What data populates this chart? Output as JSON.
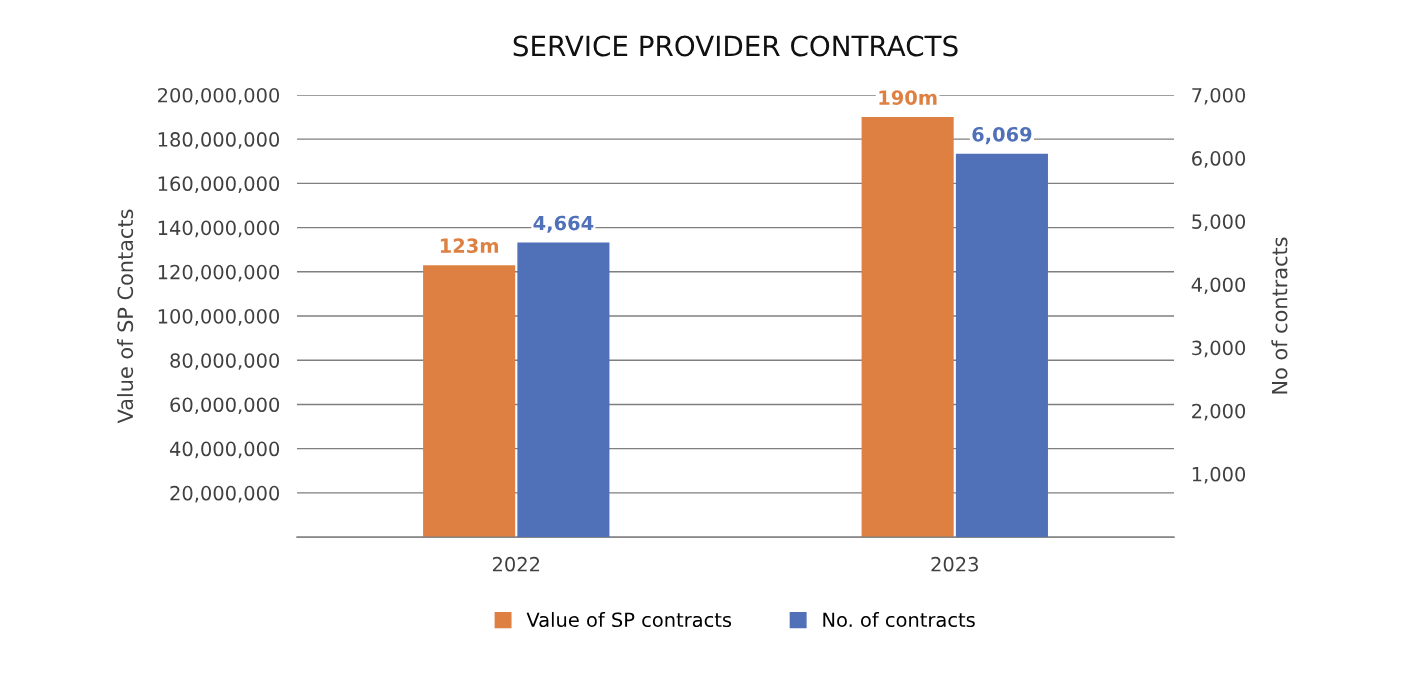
{
  "chart_data": {
    "type": "bar",
    "title": "SERVICE PROVIDER CONTRACTS",
    "ylabel": "Value of SP Contacts",
    "y2label": "No of contracts",
    "categories": [
      "2022",
      "2023"
    ],
    "series": [
      {
        "name": "Value of SP contracts",
        "color": "#dd8042",
        "values": [
          123000000,
          190000000
        ],
        "value_labels": [
          "123m",
          "190m"
        ]
      },
      {
        "name": "No. of contracts",
        "color": "#5070b8",
        "values": [
          4664,
          6069
        ],
        "axis": "y2",
        "value_labels": [
          "4,664",
          "6,069"
        ]
      }
    ],
    "ylim": [
      0,
      200000000
    ],
    "yticks": [
      {
        "value": 20000000,
        "label": "20,000,000"
      },
      {
        "value": 40000000,
        "label": "40,000,000"
      },
      {
        "value": 60000000,
        "label": "60,000,000"
      },
      {
        "value": 80000000,
        "label": "80,000,000"
      },
      {
        "value": 100000000,
        "label": "100,000,000"
      },
      {
        "value": 120000000,
        "label": "120,000,000"
      },
      {
        "value": 140000000,
        "label": "140,000,000"
      },
      {
        "value": 160000000,
        "label": "160,000,000"
      },
      {
        "value": 180000000,
        "label": "180,000,000"
      },
      {
        "value": 200000000,
        "label": "200,000,000"
      }
    ],
    "y2lim": [
      0,
      7000
    ],
    "y2ticks": [
      {
        "value": 1000,
        "label": "1,000"
      },
      {
        "value": 2000,
        "label": "2,000"
      },
      {
        "value": 3000,
        "label": "3,000"
      },
      {
        "value": 4000,
        "label": "4,000"
      },
      {
        "value": 5000,
        "label": "5,000"
      },
      {
        "value": 6000,
        "label": "6,000"
      },
      {
        "value": 7000,
        "label": "7,000"
      }
    ],
    "grid": "y",
    "legend": "bottom"
  }
}
